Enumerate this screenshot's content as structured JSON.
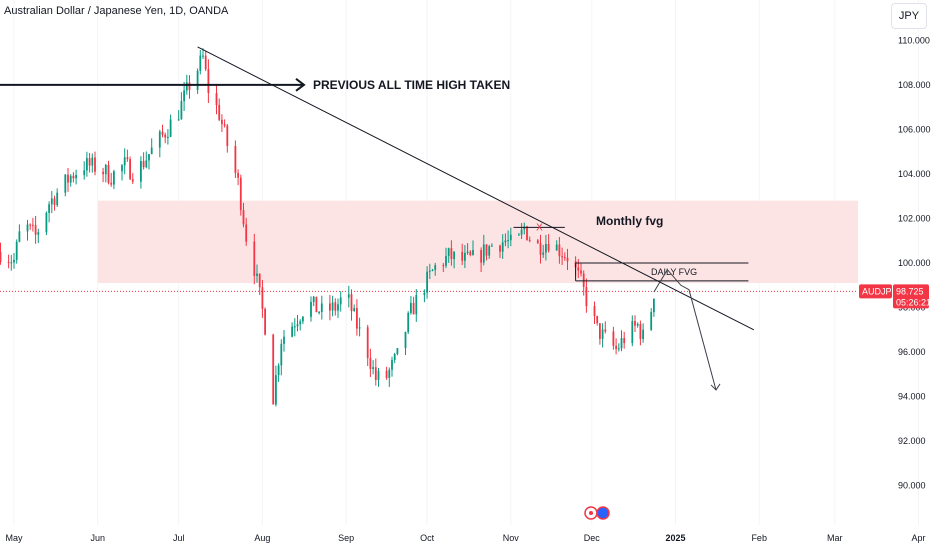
{
  "header": {
    "title": "Australian Dollar / Japanese Yen, 1D, OANDA",
    "currency_button": "JPY"
  },
  "colors": {
    "up": "#089981",
    "down": "#f23645",
    "zone_fill": "#fce4e4",
    "price_line": "#f23645",
    "annotation": "#131722"
  },
  "annotations": {
    "ath_label": "PREVIOUS ALL TIME HIGH TAKEN",
    "monthly_fvg_label": "Monthly fvg",
    "daily_fvg_label": "DAILY FVG",
    "x_marker": "X"
  },
  "price_tag": {
    "symbol": "AUDJPY",
    "price": "98.725",
    "countdown": "05:26:21"
  },
  "chart_data": {
    "type": "candlestick",
    "title": "Australian Dollar / Japanese Yen, 1D, OANDA",
    "ylim": [
      89,
      111
    ],
    "y_ticks": [
      "110.000",
      "108.000",
      "106.000",
      "104.000",
      "102.000",
      "100.000",
      "98.000",
      "96.000",
      "94.000",
      "92.000",
      "90.000"
    ],
    "x_ticks": [
      "May",
      "Jun",
      "Jul",
      "Aug",
      "Sep",
      "Oct",
      "Nov",
      "Dec",
      "2025",
      "Feb",
      "Mar",
      "Apr"
    ],
    "x_tick_dates": [
      "2024-05-01",
      "2024-06-01",
      "2024-07-01",
      "2024-08-01",
      "2024-09-01",
      "2024-10-01",
      "2024-11-01",
      "2024-12-01",
      "2025-01-01",
      "2025-02-01",
      "2025-03-01",
      "2025-04-01"
    ],
    "last_price": 98.725,
    "path": [
      [
        "2024-04-26",
        100.5
      ],
      [
        "2024-05-01",
        100.1
      ],
      [
        "2024-05-04",
        101.8
      ],
      [
        "2024-05-09",
        101.2
      ],
      [
        "2024-05-14",
        102.7
      ],
      [
        "2024-05-18",
        103.3
      ],
      [
        "2024-05-22",
        103.9
      ],
      [
        "2024-05-27",
        104.4
      ],
      [
        "2024-06-01",
        104.3
      ],
      [
        "2024-06-06",
        103.9
      ],
      [
        "2024-06-11",
        104.4
      ],
      [
        "2024-06-15",
        104.0
      ],
      [
        "2024-06-20",
        104.9
      ],
      [
        "2024-06-25",
        105.7
      ],
      [
        "2024-07-01",
        106.8
      ],
      [
        "2024-07-05",
        108.0
      ],
      [
        "2024-07-10",
        109.2
      ],
      [
        "2024-07-12",
        107.8
      ],
      [
        "2024-07-16",
        106.7
      ],
      [
        "2024-07-19",
        105.3
      ],
      [
        "2024-07-23",
        103.6
      ],
      [
        "2024-07-26",
        101.2
      ],
      [
        "2024-07-29",
        99.8
      ],
      [
        "2024-08-02",
        97.2
      ],
      [
        "2024-08-05",
        94.0
      ],
      [
        "2024-08-08",
        96.6
      ],
      [
        "2024-08-13",
        97.4
      ],
      [
        "2024-08-18",
        98.2
      ],
      [
        "2024-08-23",
        97.8
      ],
      [
        "2024-08-28",
        98.0
      ],
      [
        "2024-09-01",
        98.6
      ],
      [
        "2024-09-05",
        97.2
      ],
      [
        "2024-09-09",
        96.0
      ],
      [
        "2024-09-12",
        94.8
      ],
      [
        "2024-09-16",
        94.9
      ],
      [
        "2024-09-20",
        95.8
      ],
      [
        "2024-09-25",
        97.8
      ],
      [
        "2024-09-30",
        99.0
      ],
      [
        "2024-10-04",
        99.8
      ],
      [
        "2024-10-09",
        100.3
      ],
      [
        "2024-10-14",
        100.1
      ],
      [
        "2024-10-19",
        100.2
      ],
      [
        "2024-10-25",
        100.8
      ],
      [
        "2024-10-30",
        101.0
      ],
      [
        "2024-11-03",
        100.7
      ],
      [
        "2024-11-06",
        101.6
      ],
      [
        "2024-11-10",
        100.7
      ],
      [
        "2024-11-15",
        101.0
      ],
      [
        "2024-11-19",
        100.6
      ],
      [
        "2024-11-23",
        100.2
      ],
      [
        "2024-11-27",
        99.1
      ],
      [
        "2024-11-30",
        98.0
      ],
      [
        "2024-12-03",
        97.0
      ],
      [
        "2024-12-06",
        96.6
      ],
      [
        "2024-12-10",
        96.1
      ],
      [
        "2024-12-14",
        96.8
      ],
      [
        "2024-12-18",
        97.2
      ],
      [
        "2024-12-21",
        96.4
      ],
      [
        "2024-12-24",
        98.7
      ]
    ],
    "trendline": [
      [
        "2024-07-08",
        109.7
      ],
      [
        "2025-01-30",
        97.0
      ]
    ],
    "ath_level": 108.0,
    "monthly_fvg_zone": {
      "from": "2024-06-01",
      "to": "2025-04-30",
      "low": 99.1,
      "high": 102.8
    },
    "daily_fvg": {
      "from": "2024-11-25",
      "to": "2025-01-28",
      "low": 99.2,
      "high": 100.0
    },
    "x_marker_level": {
      "from": "2024-11-02",
      "to": "2024-11-21",
      "value": 101.6
    },
    "projection": [
      [
        "2024-12-24",
        98.7
      ],
      [
        "2024-12-29",
        99.7
      ],
      [
        "2025-01-03",
        99.0
      ],
      [
        "2025-01-06",
        98.8
      ],
      [
        "2025-01-16",
        94.3
      ]
    ]
  }
}
